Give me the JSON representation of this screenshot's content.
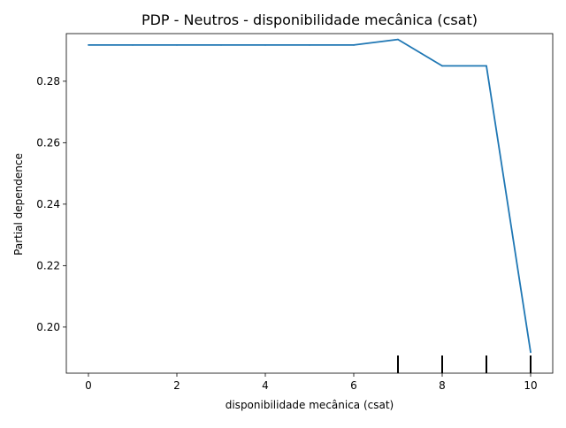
{
  "chart_data": {
    "type": "line",
    "title": "PDP - Neutros - disponibilidade mecânica (csat)",
    "xlabel": "disponibilidade mecânica (csat)",
    "ylabel": "Partial dependence",
    "xlim": [
      -0.5,
      10.5
    ],
    "ylim": [
      0.185,
      0.2955
    ],
    "x_ticks": [
      0,
      2,
      4,
      6,
      8,
      10
    ],
    "y_ticks": [
      0.2,
      0.22,
      0.24,
      0.26,
      0.28
    ],
    "x_tick_labels": [
      "0",
      "2",
      "4",
      "6",
      "8",
      "10"
    ],
    "y_tick_labels": [
      "0.20",
      "0.22",
      "0.24",
      "0.26",
      "0.28"
    ],
    "grid": false,
    "series": [
      {
        "color": "#1f77b4",
        "x": [
          0,
          1,
          2,
          3,
          4,
          5,
          6,
          7,
          8,
          9,
          10
        ],
        "y": [
          0.2918,
          0.2918,
          0.2918,
          0.2918,
          0.2918,
          0.2918,
          0.2918,
          0.2936,
          0.285,
          0.285,
          0.1918
        ]
      }
    ],
    "deciles": [
      7,
      8,
      9,
      10
    ]
  }
}
